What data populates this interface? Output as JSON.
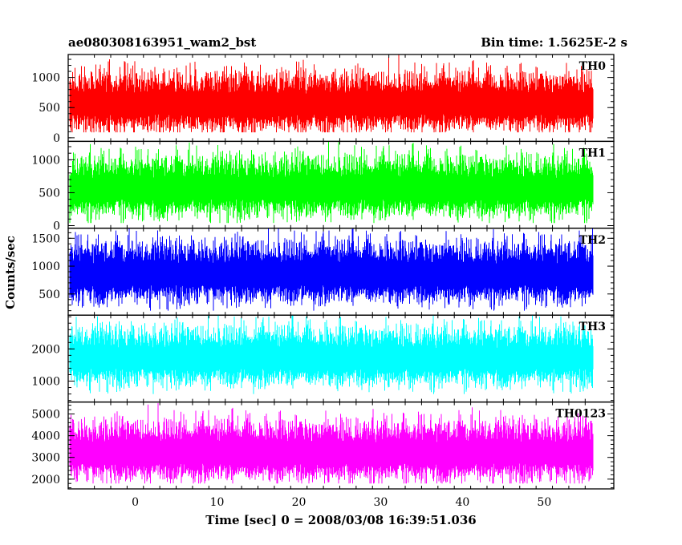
{
  "chart_data": {
    "type": "line",
    "title": "ae080308163951_wam2_bst",
    "subtitle": "Bin time: 1.5625E-2 s",
    "xlabel": "Time [sec] 0 = 2008/03/08 16:39:51.036",
    "ylabel": "Counts/sec",
    "xlim": [
      -8.2,
      58.5
    ],
    "x_data_range": [
      -8.0,
      56.0
    ],
    "x_ticks": [
      0,
      10,
      20,
      30,
      40,
      50
    ],
    "grid": false,
    "panels": [
      {
        "name": "TH0",
        "color": "#ff0000",
        "ylim": [
          -60,
          1380
        ],
        "y_ticks": [
          0,
          500,
          1000
        ],
        "mean": 560,
        "min": 90,
        "max": 1380
      },
      {
        "name": "TH1",
        "color": "#00ff00",
        "ylim": [
          -40,
          1280
        ],
        "y_ticks": [
          0,
          500,
          1000
        ],
        "mean": 560,
        "min": 40,
        "max": 1280
      },
      {
        "name": "TH2",
        "color": "#0000ff",
        "ylim": [
          120,
          1680
        ],
        "y_ticks": [
          500,
          1000,
          1500
        ],
        "mean": 850,
        "min": 200,
        "max": 1680
      },
      {
        "name": "TH3",
        "color": "#00ffff",
        "ylim": [
          350,
          3050
        ],
        "y_ticks": [
          1000,
          2000
        ],
        "mean": 1700,
        "min": 600,
        "max": 3050
      },
      {
        "name": "TH0123",
        "color": "#ff00ff",
        "ylim": [
          1550,
          5550
        ],
        "y_ticks": [
          2000,
          3000,
          4000,
          5000
        ],
        "mean": 3200,
        "min": 1800,
        "max": 5500
      }
    ]
  }
}
